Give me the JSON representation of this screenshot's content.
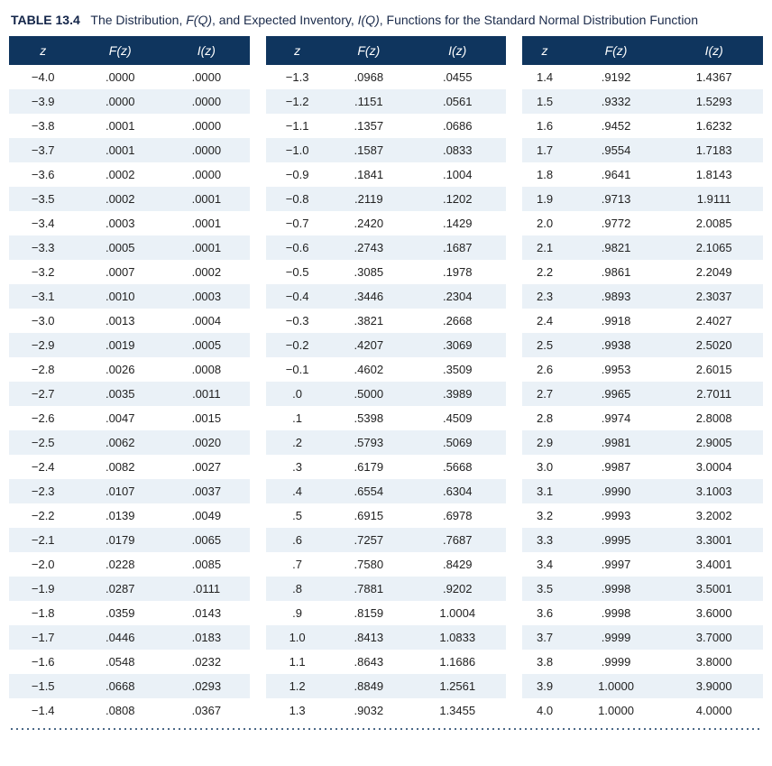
{
  "caption": {
    "label": "TABLE 13.4",
    "text_parts": [
      "The Distribution, ",
      "F(Q)",
      ", and Expected Inventory, ",
      "I(Q)",
      ", Functions for the Standard Normal Distribution Function"
    ]
  },
  "headers": {
    "z": "z",
    "Fz": "F(z)",
    "Iz": "I(z)"
  },
  "colors": {
    "header_bg": "#0f355e",
    "header_fg": "#ffffff",
    "row_alt_bg": "#eaf1f7",
    "row_bg": "#ffffff",
    "text": "#222222",
    "caption": "#1a2a4a"
  },
  "font_sizes": {
    "caption": 14,
    "header": 14,
    "cell": 13
  },
  "blocks": [
    {
      "rows": [
        [
          "−4.0",
          ".0000",
          ".0000"
        ],
        [
          "−3.9",
          ".0000",
          ".0000"
        ],
        [
          "−3.8",
          ".0001",
          ".0000"
        ],
        [
          "−3.7",
          ".0001",
          ".0000"
        ],
        [
          "−3.6",
          ".0002",
          ".0000"
        ],
        [
          "−3.5",
          ".0002",
          ".0001"
        ],
        [
          "−3.4",
          ".0003",
          ".0001"
        ],
        [
          "−3.3",
          ".0005",
          ".0001"
        ],
        [
          "−3.2",
          ".0007",
          ".0002"
        ],
        [
          "−3.1",
          ".0010",
          ".0003"
        ],
        [
          "−3.0",
          ".0013",
          ".0004"
        ],
        [
          "−2.9",
          ".0019",
          ".0005"
        ],
        [
          "−2.8",
          ".0026",
          ".0008"
        ],
        [
          "−2.7",
          ".0035",
          ".0011"
        ],
        [
          "−2.6",
          ".0047",
          ".0015"
        ],
        [
          "−2.5",
          ".0062",
          ".0020"
        ],
        [
          "−2.4",
          ".0082",
          ".0027"
        ],
        [
          "−2.3",
          ".0107",
          ".0037"
        ],
        [
          "−2.2",
          ".0139",
          ".0049"
        ],
        [
          "−2.1",
          ".0179",
          ".0065"
        ],
        [
          "−2.0",
          ".0228",
          ".0085"
        ],
        [
          "−1.9",
          ".0287",
          ".0111"
        ],
        [
          "−1.8",
          ".0359",
          ".0143"
        ],
        [
          "−1.7",
          ".0446",
          ".0183"
        ],
        [
          "−1.6",
          ".0548",
          ".0232"
        ],
        [
          "−1.5",
          ".0668",
          ".0293"
        ],
        [
          "−1.4",
          ".0808",
          ".0367"
        ]
      ]
    },
    {
      "rows": [
        [
          "−1.3",
          ".0968",
          ".0455"
        ],
        [
          "−1.2",
          ".1151",
          ".0561"
        ],
        [
          "−1.1",
          ".1357",
          ".0686"
        ],
        [
          "−1.0",
          ".1587",
          ".0833"
        ],
        [
          "−0.9",
          ".1841",
          ".1004"
        ],
        [
          "−0.8",
          ".2119",
          ".1202"
        ],
        [
          "−0.7",
          ".2420",
          ".1429"
        ],
        [
          "−0.6",
          ".2743",
          ".1687"
        ],
        [
          "−0.5",
          ".3085",
          ".1978"
        ],
        [
          "−0.4",
          ".3446",
          ".2304"
        ],
        [
          "−0.3",
          ".3821",
          ".2668"
        ],
        [
          "−0.2",
          ".4207",
          ".3069"
        ],
        [
          "−0.1",
          ".4602",
          ".3509"
        ],
        [
          ".0",
          ".5000",
          ".3989"
        ],
        [
          ".1",
          ".5398",
          ".4509"
        ],
        [
          ".2",
          ".5793",
          ".5069"
        ],
        [
          ".3",
          ".6179",
          ".5668"
        ],
        [
          ".4",
          ".6554",
          ".6304"
        ],
        [
          ".5",
          ".6915",
          ".6978"
        ],
        [
          ".6",
          ".7257",
          ".7687"
        ],
        [
          ".7",
          ".7580",
          ".8429"
        ],
        [
          ".8",
          ".7881",
          ".9202"
        ],
        [
          ".9",
          ".8159",
          "1.0004"
        ],
        [
          "1.0",
          ".8413",
          "1.0833"
        ],
        [
          "1.1",
          ".8643",
          "1.1686"
        ],
        [
          "1.2",
          ".8849",
          "1.2561"
        ],
        [
          "1.3",
          ".9032",
          "1.3455"
        ]
      ]
    },
    {
      "rows": [
        [
          "1.4",
          ".9192",
          "1.4367"
        ],
        [
          "1.5",
          ".9332",
          "1.5293"
        ],
        [
          "1.6",
          ".9452",
          "1.6232"
        ],
        [
          "1.7",
          ".9554",
          "1.7183"
        ],
        [
          "1.8",
          ".9641",
          "1.8143"
        ],
        [
          "1.9",
          ".9713",
          "1.9111"
        ],
        [
          "2.0",
          ".9772",
          "2.0085"
        ],
        [
          "2.1",
          ".9821",
          "2.1065"
        ],
        [
          "2.2",
          ".9861",
          "2.2049"
        ],
        [
          "2.3",
          ".9893",
          "2.3037"
        ],
        [
          "2.4",
          ".9918",
          "2.4027"
        ],
        [
          "2.5",
          ".9938",
          "2.5020"
        ],
        [
          "2.6",
          ".9953",
          "2.6015"
        ],
        [
          "2.7",
          ".9965",
          "2.7011"
        ],
        [
          "2.8",
          ".9974",
          "2.8008"
        ],
        [
          "2.9",
          ".9981",
          "2.9005"
        ],
        [
          "3.0",
          ".9987",
          "3.0004"
        ],
        [
          "3.1",
          ".9990",
          "3.1003"
        ],
        [
          "3.2",
          ".9993",
          "3.2002"
        ],
        [
          "3.3",
          ".9995",
          "3.3001"
        ],
        [
          "3.4",
          ".9997",
          "3.4001"
        ],
        [
          "3.5",
          ".9998",
          "3.5001"
        ],
        [
          "3.6",
          ".9998",
          "3.6000"
        ],
        [
          "3.7",
          ".9999",
          "3.7000"
        ],
        [
          "3.8",
          ".9999",
          "3.8000"
        ],
        [
          "3.9",
          "1.0000",
          "3.9000"
        ],
        [
          "4.0",
          "1.0000",
          "4.0000"
        ]
      ]
    }
  ]
}
